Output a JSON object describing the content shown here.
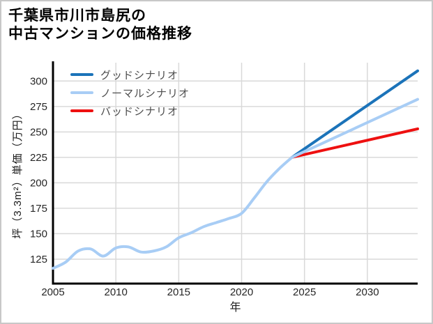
{
  "title": {
    "lines": [
      "千葉県市川市島尻の",
      "中古マンションの価格推移"
    ]
  },
  "axes": {
    "x_label": "年",
    "y_label": "坪（3.3m²）単価（万円）"
  },
  "legend": {
    "items": [
      {
        "label": "グッドシナリオ",
        "color": "#1b73b9"
      },
      {
        "label": "ノーマルシナリオ",
        "color": "#a8cdf5"
      },
      {
        "label": "バッドシナリオ",
        "color": "#ee1010"
      }
    ]
  },
  "chart_data": {
    "type": "line",
    "title": "千葉県市川市島尻の中古マンションの価格推移",
    "xlabel": "年",
    "ylabel": "坪（3.3m²）単価（万円）",
    "xlim": [
      2005,
      2034
    ],
    "ylim": [
      101,
      318
    ],
    "x_ticks": [
      2005,
      2010,
      2015,
      2020,
      2025,
      2030
    ],
    "y_ticks": [
      125,
      150,
      175,
      200,
      225,
      250,
      275,
      300
    ],
    "grid": true,
    "legend_position": "inside-top-left",
    "colors": {
      "good": "#1b73b9",
      "normal": "#a8cdf5",
      "bad": "#ee1010",
      "grid": "#d9d9d9",
      "axis": "#000000",
      "tick_label": "#262626"
    },
    "series": [
      {
        "id": "history",
        "name": "history",
        "color": "#a8cdf5",
        "x": [
          2005,
          2006,
          2007,
          2008,
          2009,
          2010,
          2011,
          2012,
          2013,
          2014,
          2015,
          2016,
          2017,
          2018,
          2019,
          2020,
          2021,
          2022,
          2023,
          2024
        ],
        "values": [
          116,
          122,
          133,
          135,
          128,
          136,
          137,
          132,
          133,
          137,
          146,
          151,
          157,
          161,
          165,
          170,
          185,
          201,
          214,
          225
        ]
      },
      {
        "id": "good",
        "name": "グッドシナリオ",
        "color": "#1b73b9",
        "x": [
          2024,
          2034
        ],
        "values": [
          225,
          310
        ]
      },
      {
        "id": "normal",
        "name": "ノーマルシナリオ",
        "color": "#a8cdf5",
        "x": [
          2024,
          2034
        ],
        "values": [
          225,
          282
        ]
      },
      {
        "id": "bad",
        "name": "バッドシナリオ",
        "color": "#ee1010",
        "x": [
          2024,
          2034
        ],
        "values": [
          225,
          253
        ]
      }
    ]
  }
}
